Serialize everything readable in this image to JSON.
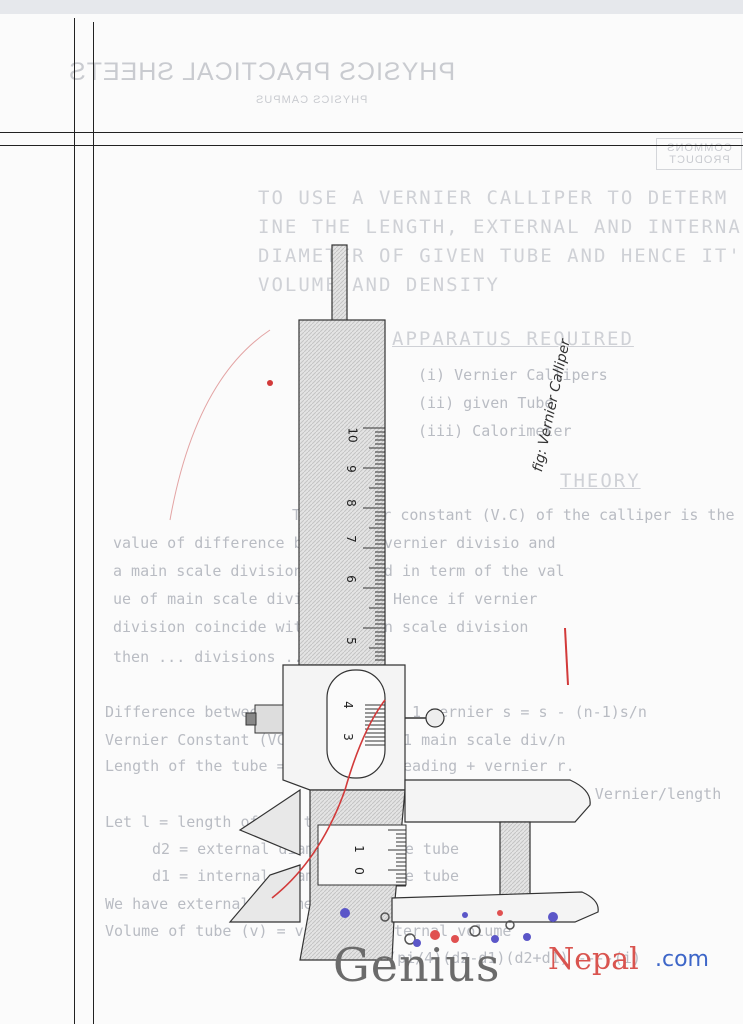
{
  "header": {
    "title": "PHYSICS PRACTICAL SHEETS",
    "subtitle": "PHYSICS CAMPUS",
    "brand": "COMMONS PRODUCT"
  },
  "experiment": {
    "objective_lines": [
      "TO USE A VERNIER CALLIPER TO DETERM",
      "INE THE LENGTH, EXTERNAL AND INTERNAL",
      "DIAMETER OF GIVEN TUBE AND HENCE IT'S",
      "VOLUME AND DENSITY"
    ],
    "apparatus_heading": "APPARATUS REQUIRED",
    "apparatus": [
      "(i) Vernier Callipers",
      "(ii) given Tube",
      "(iii) Calorimeter"
    ],
    "theory_heading": "THEORY",
    "theory_lines": [
      "The vernier constant (V.C) of the calliper is the",
      "value of difference between a vernier divisio and",
      "a main scale division expressed in term of the val",
      "ue of main scale division (s). Hence if vernier",
      "division coincide with n-1 main scale division",
      "then ... divisions ... (n-1)s",
      "Difference between 1 main scale & 1 vernier s = s - (n-1)s/n",
      "Vernier Constant (VC) = value of 1 main scale div/n",
      "Length of the tube = main scale reading + vernier r.",
      "... vernier reading & its Vernier/length",
      "Let l = length of the tube",
      "d2 = external diameter of the tube",
      "d1 = internal diameter of the tube",
      "We have external volume = (pi/4)l",
      "Volume of tube (v) = volume - internal volume",
      "= (pi/4)(d2-d1)(d2+d1) ----(i)"
    ]
  },
  "figure": {
    "caption": "fig: Vernier Calliper",
    "scale_numbers": [
      "10",
      "9",
      "8",
      "7",
      "6",
      "5"
    ],
    "vernier_numbers": [
      "4",
      "3"
    ],
    "lower_numbers": [
      "1",
      "0"
    ]
  },
  "watermark": {
    "word1": "Genius",
    "word2": "Nepal",
    "word3": ".com",
    "colors": {
      "genius": "#6b6b6b",
      "nepal": "#d9544f",
      "com": "#3d66c8"
    }
  }
}
